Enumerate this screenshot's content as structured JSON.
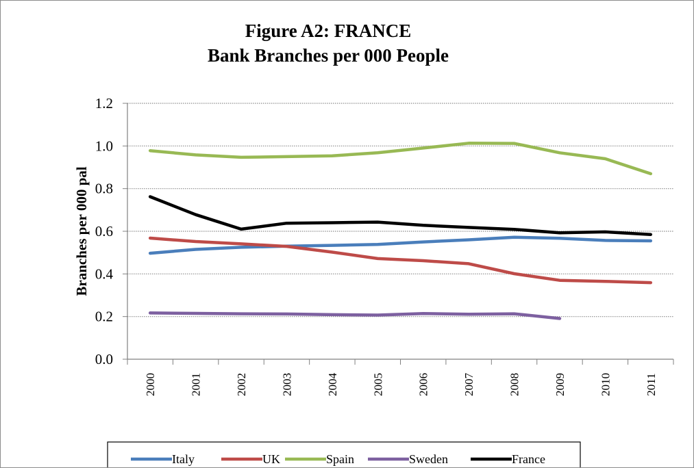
{
  "chart_data": {
    "type": "line",
    "title": "Figure A2: FRANCE",
    "subtitle": "Bank Branches per 000 People",
    "xlabel": "",
    "ylabel": "Branches per 000 pal",
    "categories": [
      "2000",
      "2001",
      "2002",
      "2003",
      "2004",
      "2005",
      "2006",
      "2007",
      "2008",
      "2009",
      "2010",
      "2011"
    ],
    "ylim": [
      0,
      1.2
    ],
    "yticks": [
      "0.0",
      "0.2",
      "0.4",
      "0.6",
      "0.8",
      "1.0",
      "1.2"
    ],
    "grid": true,
    "legend_position": "bottom",
    "series": [
      {
        "name": "Italy",
        "color": "#4a7ebb",
        "values": [
          0.497,
          0.515,
          0.525,
          0.53,
          0.534,
          0.538,
          0.55,
          0.56,
          0.572,
          0.567,
          0.557,
          0.555
        ]
      },
      {
        "name": "UK",
        "color": "#be4b48",
        "values": [
          0.568,
          0.552,
          0.541,
          0.529,
          0.502,
          0.472,
          0.462,
          0.448,
          0.401,
          0.37,
          0.365,
          0.359
        ]
      },
      {
        "name": "Spain",
        "color": "#98b954",
        "values": [
          0.978,
          0.958,
          0.947,
          0.95,
          0.954,
          0.968,
          0.99,
          1.013,
          1.012,
          0.968,
          0.94,
          0.87
        ]
      },
      {
        "name": "Sweden",
        "color": "#7d60a0",
        "values": [
          0.217,
          0.215,
          0.213,
          0.212,
          0.209,
          0.207,
          0.214,
          0.211,
          0.213,
          0.191,
          null,
          null
        ]
      },
      {
        "name": "France",
        "color": "#000000",
        "values": [
          0.762,
          0.678,
          0.61,
          0.638,
          0.64,
          0.643,
          0.628,
          0.618,
          0.609,
          0.593,
          0.597,
          0.585
        ]
      }
    ]
  }
}
